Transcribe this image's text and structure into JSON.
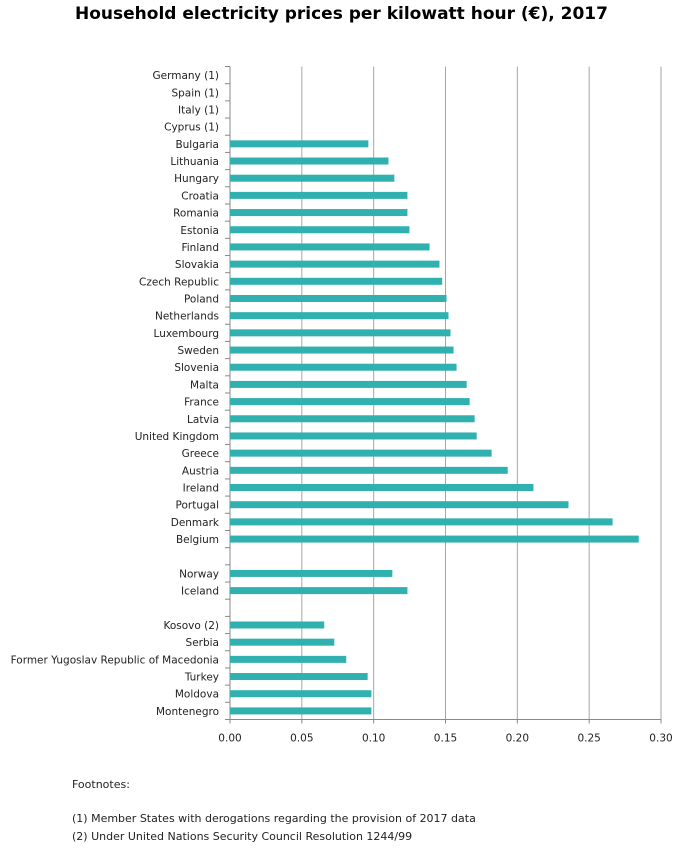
{
  "chart_data": {
    "type": "bar",
    "orientation": "horizontal",
    "title": "Household electricity prices per kilowatt hour (€), 2017",
    "xlabel": "",
    "ylabel": "",
    "xlim": [
      0,
      0.3
    ],
    "xticks": [
      "0.00",
      "0.05",
      "0.10",
      "0.15",
      "0.20",
      "0.25",
      "0.30"
    ],
    "grid": true,
    "color": "#31b0b0",
    "categories": [
      "Germany (1)",
      "Spain (1)",
      "Italy (1)",
      "Cyprus (1)",
      "Bulgaria",
      "Lithuania",
      "Hungary",
      "Croatia",
      "Romania",
      "Estonia",
      "Finland",
      "Slovakia",
      "Czech Republic",
      "Poland",
      "Netherlands",
      "Luxembourg",
      "Sweden",
      "Slovenia",
      "Malta",
      "France",
      "Latvia",
      "United Kingdom",
      "Greece",
      "Austria",
      "Ireland",
      "Portugal",
      "Denmark",
      "Belgium",
      "",
      "Norway",
      "Iceland",
      "",
      "Kosovo (2)",
      "Serbia",
      "Former Yugoslav Republic of Macedonia",
      "Turkey",
      "Moldova",
      "Montenegro"
    ],
    "values": [
      null,
      null,
      null,
      null,
      0.0963,
      0.1103,
      0.1144,
      0.1235,
      0.1235,
      0.1249,
      0.1389,
      0.1458,
      0.1477,
      0.1507,
      0.1521,
      0.1535,
      0.1556,
      0.1577,
      0.1647,
      0.1668,
      0.1703,
      0.1717,
      0.1821,
      0.1933,
      0.2112,
      0.2356,
      0.2663,
      0.2845,
      null,
      0.113,
      0.1235,
      null,
      0.0656,
      0.0726,
      0.0809,
      0.0958,
      0.0984,
      0.0984
    ]
  },
  "footnotes": {
    "heading": "Footnotes:",
    "items": [
      "(1)  Member States with derogations regarding the provision of 2017 data",
      "(2)  Under United Nations Security Council Resolution 1244/99"
    ]
  }
}
